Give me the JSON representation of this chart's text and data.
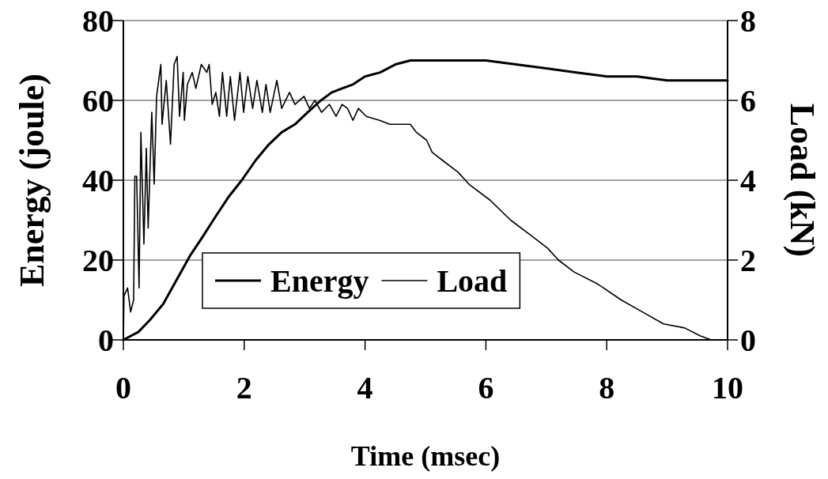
{
  "chart_data": {
    "type": "line",
    "xlabel": "Time (msec)",
    "ylabel": "Energy (joule)",
    "y2label": "Load (kN)",
    "xlim": [
      0,
      10
    ],
    "xticks": [
      0,
      2,
      4,
      6,
      8,
      10
    ],
    "ylim": [
      0,
      80
    ],
    "yticks": [
      0,
      20,
      40,
      60,
      80
    ],
    "y2lim": [
      0,
      8
    ],
    "y2ticks": [
      0,
      2,
      4,
      6,
      8
    ],
    "grid": "y",
    "legend": "bottom left",
    "line_style": "solid",
    "series": [
      {
        "name": "Energy",
        "color": "#000000",
        "x": [
          0,
          0.25,
          0.44,
          0.66,
          0.88,
          1.1,
          1.32,
          1.53,
          1.75,
          1.96,
          2.19,
          2.41,
          2.62,
          2.84,
          3.05,
          3.27,
          3.45,
          3.62,
          3.8,
          4.0,
          4.25,
          4.5,
          4.75,
          4.93,
          5.5,
          6.0,
          6.5,
          7.0,
          7.5,
          8.0,
          8.5,
          9.0,
          9.5,
          10
        ],
        "values": [
          0,
          2,
          5,
          9,
          15,
          21,
          26,
          31,
          36,
          40,
          45,
          49,
          52,
          54,
          57,
          60,
          62,
          63,
          64,
          66,
          67,
          69,
          70,
          70,
          70,
          70,
          69,
          68,
          67,
          66,
          66,
          65,
          65,
          65
        ]
      },
      {
        "name": "Load",
        "color": "#000000",
        "axis": "y2",
        "x": [
          0,
          0.01,
          0.07,
          0.12,
          0.17,
          0.19,
          0.22,
          0.26,
          0.29,
          0.34,
          0.38,
          0.41,
          0.47,
          0.51,
          0.55,
          0.62,
          0.64,
          0.71,
          0.78,
          0.84,
          0.89,
          0.93,
          0.99,
          1.01,
          1.06,
          1.14,
          1.2,
          1.29,
          1.38,
          1.42,
          1.47,
          1.53,
          1.59,
          1.64,
          1.71,
          1.77,
          1.84,
          1.93,
          1.99,
          2.06,
          2.14,
          2.21,
          2.3,
          2.36,
          2.43,
          2.54,
          2.62,
          2.75,
          2.84,
          2.99,
          3.08,
          3.17,
          3.28,
          3.41,
          3.52,
          3.62,
          3.71,
          3.8,
          3.89,
          4.02,
          4.24,
          4.41,
          4.58,
          4.75,
          4.85,
          5.02,
          5.11,
          5.28,
          5.54,
          5.72,
          6.07,
          6.41,
          6.76,
          7.02,
          7.2,
          7.46,
          7.85,
          8.24,
          8.59,
          8.94,
          9.29,
          9.55,
          9.73,
          9.88
        ],
        "values": [
          0,
          1.1,
          1.3,
          0.7,
          1.0,
          4.1,
          4.1,
          1.3,
          5.2,
          2.4,
          4.8,
          2.8,
          5.7,
          3.9,
          6.1,
          6.9,
          5.4,
          6.5,
          4.9,
          6.9,
          7.1,
          5.6,
          6.7,
          5.5,
          6.4,
          6.7,
          6.3,
          6.9,
          6.7,
          6.9,
          5.9,
          6.2,
          5.6,
          6.7,
          5.6,
          6.6,
          5.5,
          6.7,
          5.7,
          6.6,
          5.8,
          6.5,
          5.7,
          6.4,
          5.7,
          6.5,
          5.8,
          6.2,
          5.9,
          6.1,
          5.8,
          6.0,
          5.7,
          5.9,
          5.6,
          5.9,
          5.8,
          5.5,
          5.8,
          5.6,
          5.5,
          5.4,
          5.4,
          5.4,
          5.2,
          5.0,
          4.7,
          4.5,
          4.2,
          3.9,
          3.5,
          3.0,
          2.6,
          2.3,
          2.0,
          1.7,
          1.4,
          1.0,
          0.7,
          0.4,
          0.3,
          0.1,
          0.0,
          0.0
        ]
      }
    ]
  }
}
